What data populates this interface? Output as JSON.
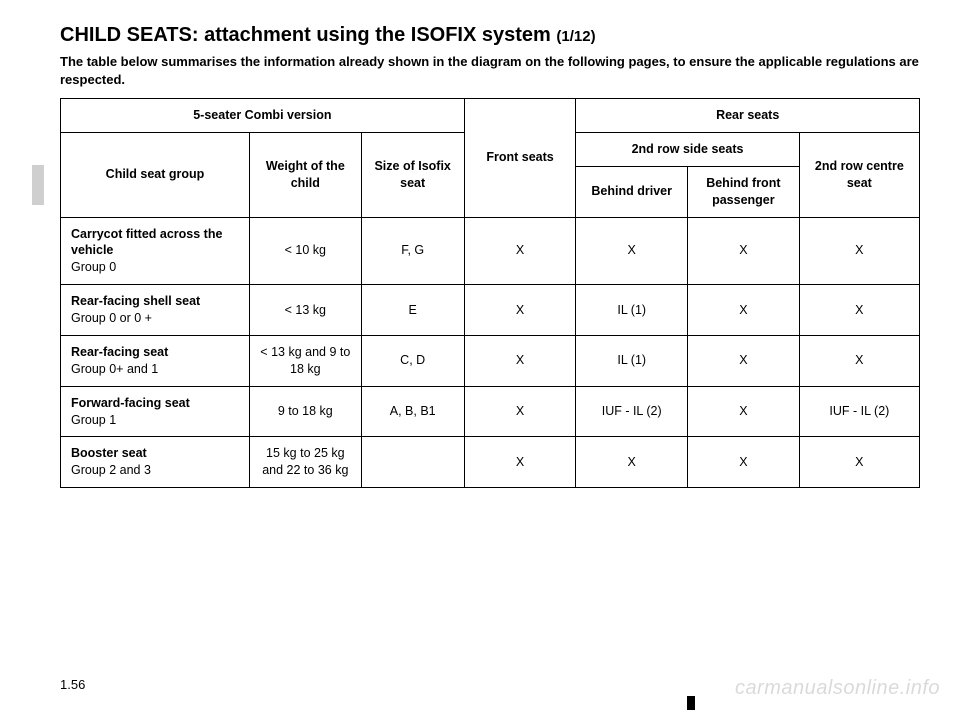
{
  "title_main": "CHILD SEATS: attachment using the ISOFIX system",
  "title_sub": "(1/12)",
  "intro": "The table below summarises the information already shown in the diagram on the following pages, to ensure the applicable regulations are respected.",
  "headers": {
    "combi": "5-seater Combi version",
    "rear": "Rear seats",
    "child_group": "Child seat group",
    "weight": "Weight of the child",
    "size": "Size of Isofix seat",
    "front": "Front seats",
    "second_side": "2nd row side seats",
    "second_centre": "2nd row centre seat",
    "behind_driver": "Behind driver",
    "behind_front": "Behind front passenger"
  },
  "rows": [
    {
      "type_title": "Carrycot fitted across the vehicle",
      "type_group": "Group 0",
      "weight": "< 10 kg",
      "size": "F, G",
      "front": "X",
      "behind_driver": "X",
      "behind_front": "X",
      "centre": "X"
    },
    {
      "type_title": "Rear-facing shell seat",
      "type_group": "Group 0 or 0 +",
      "weight": "< 13 kg",
      "size": "E",
      "front": "X",
      "behind_driver": "IL (1)",
      "behind_front": "X",
      "centre": "X"
    },
    {
      "type_title": "Rear-facing seat",
      "type_group": "Group 0+ and 1",
      "weight": "< 13 kg and 9 to 18 kg",
      "size": "C, D",
      "front": "X",
      "behind_driver": "IL (1)",
      "behind_front": "X",
      "centre": "X"
    },
    {
      "type_title": "Forward-facing seat",
      "type_group": "Group 1",
      "weight": "9 to 18 kg",
      "size": "A, B, B1",
      "front": "X",
      "behind_driver": "IUF - IL (2)",
      "behind_front": "X",
      "centre": "IUF - IL (2)"
    },
    {
      "type_title": "Booster seat",
      "type_group": "Group 2 and 3",
      "weight": "15 kg to 25 kg and 22 to 36 kg",
      "size": "",
      "front": "X",
      "behind_driver": "X",
      "behind_front": "X",
      "centre": "X"
    }
  ],
  "page_number": "1.56",
  "watermark": "carmanualsonline.info",
  "colors": {
    "text": "#000000",
    "background": "#ffffff",
    "tab": "#cfcfcf",
    "watermark": "rgba(0,0,0,0.15)"
  }
}
